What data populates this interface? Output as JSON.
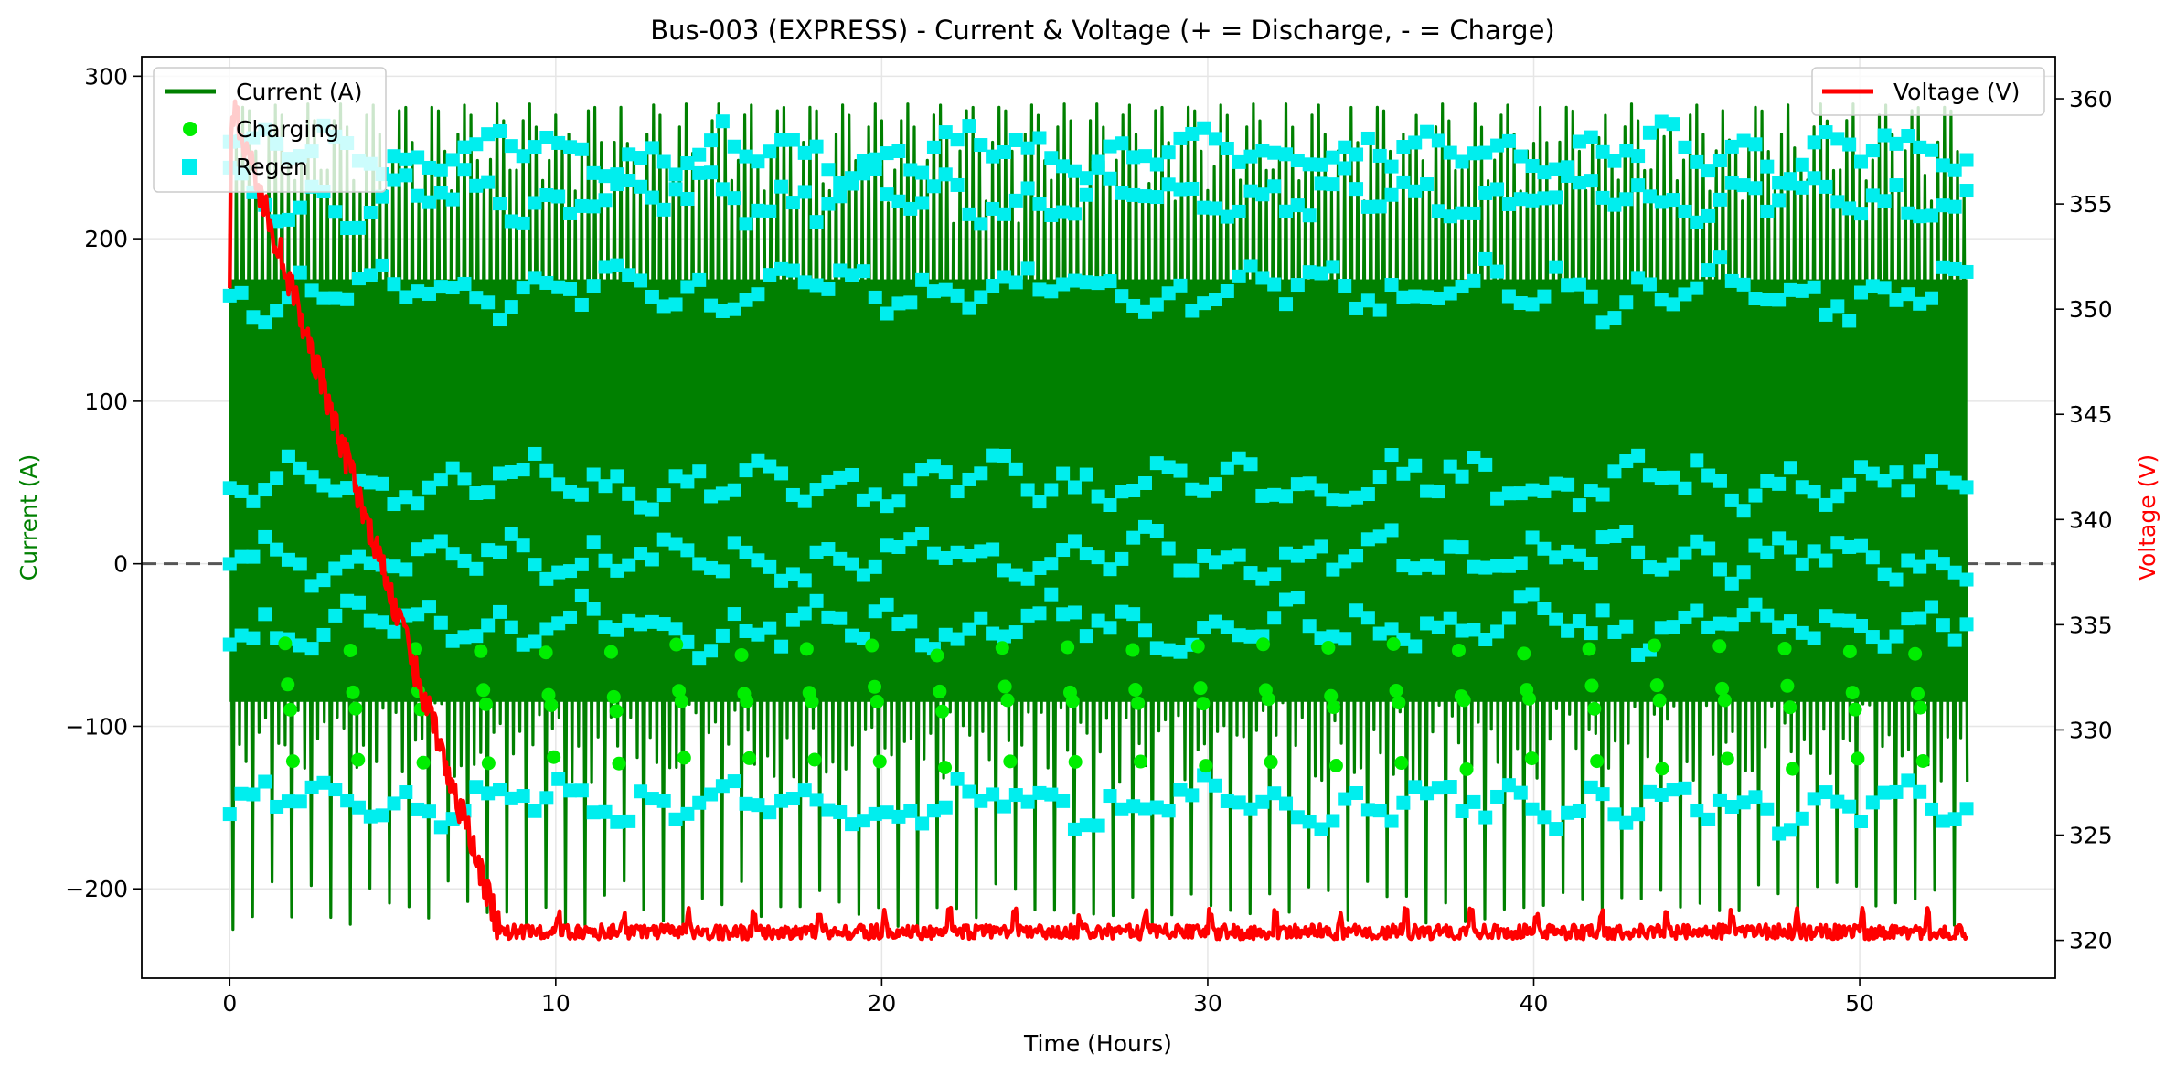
{
  "chart_data": {
    "type": "line",
    "title": "Bus-003 (EXPRESS) - Current & Voltage (+ = Discharge, - = Charge)",
    "xlabel": "Time (Hours)",
    "ylabel_left": "Current (A)",
    "ylabel_right": "Voltage (V)",
    "xlim": [
      -2.7,
      56.0
    ],
    "ylim_left": [
      -255,
      312
    ],
    "ylim_right": [
      318.2,
      362.0
    ],
    "x_ticks": [
      0,
      10,
      20,
      30,
      40,
      50
    ],
    "y_ticks_left": [
      -200,
      -100,
      0,
      100,
      200,
      300
    ],
    "y_ticks_right": [
      320,
      325,
      330,
      335,
      340,
      345,
      350,
      355,
      360
    ],
    "grid": true,
    "zero_line": 0,
    "x_end": 53.3,
    "legend_left": {
      "placement": "upper-left",
      "entries": [
        "Current (A)",
        "Charging",
        "Regen"
      ]
    },
    "legend_right": {
      "placement": "upper-right",
      "entries": [
        "Voltage (V)"
      ]
    },
    "series": [
      {
        "name": "Current (A)",
        "axis": "left",
        "color": "#008000",
        "kind": "line",
        "period_hours": 0.2,
        "envelope_high": 283,
        "envelope_low": -225,
        "dense_band": [
          -85,
          175
        ]
      },
      {
        "name": "Charging",
        "axis": "left",
        "color": "#00ee00",
        "kind": "markers",
        "marker": "circle",
        "cycle_hours": 2.0,
        "cycle_start_hours": 1.7,
        "levels": [
          -53,
          -78,
          -87,
          -123
        ]
      },
      {
        "name": "Regen",
        "axis": "left",
        "color": "#00eeee",
        "kind": "markers",
        "marker": "square",
        "levels": [
          253,
          225,
          168,
          50,
          5,
          -38,
          -148
        ]
      },
      {
        "name": "Voltage (V)",
        "axis": "right",
        "color": "#ff0000",
        "kind": "line",
        "start": 360.0,
        "drop_end_hours": 8.3,
        "floor": 320.4,
        "plateau": [
          320.0,
          321.2
        ]
      }
    ]
  }
}
